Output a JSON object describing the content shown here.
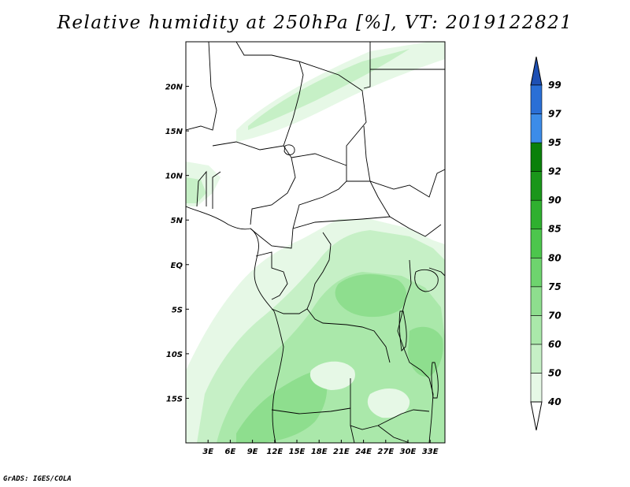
{
  "title": "Relative humidity at 250hPa [%], VT: 2019122821",
  "credit": "GrADS: IGES/COLA",
  "map": {
    "lon_range": [
      0,
      35
    ],
    "lat_range": [
      -20,
      25
    ],
    "lon_ticks": [
      {
        "value": 3,
        "label": "3E"
      },
      {
        "value": 6,
        "label": "6E"
      },
      {
        "value": 9,
        "label": "9E"
      },
      {
        "value": 12,
        "label": "12E"
      },
      {
        "value": 15,
        "label": "15E"
      },
      {
        "value": 18,
        "label": "18E"
      },
      {
        "value": 21,
        "label": "21E"
      },
      {
        "value": 24,
        "label": "24E"
      },
      {
        "value": 27,
        "label": "27E"
      },
      {
        "value": 30,
        "label": "30E"
      },
      {
        "value": 33,
        "label": "33E"
      }
    ],
    "lat_ticks": [
      {
        "value": 20,
        "label": "20N"
      },
      {
        "value": 15,
        "label": "15N"
      },
      {
        "value": 10,
        "label": "10N"
      },
      {
        "value": 5,
        "label": "5N"
      },
      {
        "value": 0,
        "label": "EQ"
      },
      {
        "value": -5,
        "label": "5S"
      },
      {
        "value": -10,
        "label": "10S"
      },
      {
        "value": -15,
        "label": "15S"
      }
    ]
  },
  "colorbar": {
    "levels": [
      "40",
      "50",
      "60",
      "70",
      "75",
      "80",
      "85",
      "90",
      "92",
      "95",
      "97",
      "99"
    ],
    "colors": [
      "#ffffff",
      "#e6f8e6",
      "#c6f0c6",
      "#aae8aa",
      "#8ede8e",
      "#6ed46e",
      "#4dc64d",
      "#2fb02f",
      "#1a961a",
      "#0a800a",
      "#3c8ce8",
      "#2a6fd6",
      "#1e50b4"
    ]
  }
}
